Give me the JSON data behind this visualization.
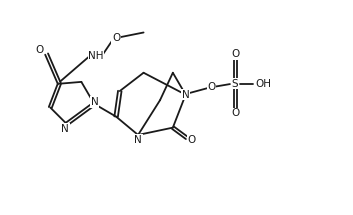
{
  "bg_color": "#ffffff",
  "line_color": "#1a1a1a",
  "line_width": 1.3,
  "font_size": 7.0,
  "fig_width": 3.53,
  "fig_height": 2.15,
  "dpi": 100,
  "xlim": [
    0,
    9.5
  ],
  "ylim": [
    0,
    5.8
  ]
}
